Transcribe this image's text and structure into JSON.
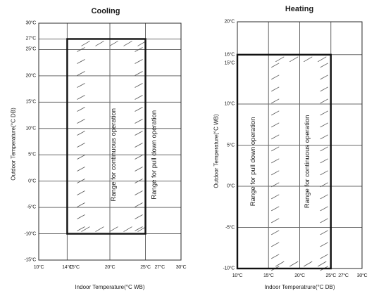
{
  "chart_data": [
    {
      "type": "area",
      "title": "Cooling",
      "xlabel": "Indoor Temperature(°C WB)",
      "ylabel": "Outdoor Temperature(°C DB)",
      "xlim": [
        10,
        30
      ],
      "ylim": [
        -15,
        30
      ],
      "x_ticks": [
        {
          "value": 10,
          "label": "10°C"
        },
        {
          "value": 14,
          "label": "14°C"
        },
        {
          "value": 15,
          "label": "15°C"
        },
        {
          "value": 20,
          "label": "20°C"
        },
        {
          "value": 25,
          "label": "25°C"
        },
        {
          "value": 27,
          "label": "27°C"
        },
        {
          "value": 30,
          "label": "30°C"
        }
      ],
      "y_ticks": [
        {
          "value": 30,
          "label": "30°C"
        },
        {
          "value": 27,
          "label": "27°C"
        },
        {
          "value": 25,
          "label": "25°C"
        },
        {
          "value": 20,
          "label": "20°C"
        },
        {
          "value": 15,
          "label": "15°C"
        },
        {
          "value": 10,
          "label": "10°C"
        },
        {
          "value": 5,
          "label": "5°C"
        },
        {
          "value": 0,
          "label": "0°C"
        },
        {
          "value": -5,
          "label": "-5°C"
        },
        {
          "value": -10,
          "label": "-10°C"
        },
        {
          "value": -15,
          "label": "-15°C"
        }
      ],
      "x_grid": [
        10,
        14,
        20,
        25,
        30
      ],
      "y_grid": [
        30,
        27,
        25,
        20,
        15,
        10,
        5,
        0,
        -5,
        -10,
        -15
      ],
      "operating_region": {
        "x": [
          14,
          25
        ],
        "y": [
          -10,
          27
        ]
      },
      "hatched_region": {
        "x": [
          15,
          25
        ],
        "y": [
          -10,
          27
        ]
      },
      "region_labels": [
        {
          "text": "Range for continuous operation",
          "x": 20.5,
          "y": 5
        },
        {
          "text": "Range for pull down operation",
          "x": 26.2,
          "y": 5
        }
      ]
    },
    {
      "type": "area",
      "title": "Heating",
      "xlabel": "Indoor Temperatrure(°C DB)",
      "ylabel": "Outdoor Temperature(°C WB)",
      "xlim": [
        10,
        30
      ],
      "ylim": [
        -10,
        20
      ],
      "x_ticks": [
        {
          "value": 10,
          "label": "10°C"
        },
        {
          "value": 15,
          "label": "15°C"
        },
        {
          "value": 20,
          "label": "20°C"
        },
        {
          "value": 25,
          "label": "25°C"
        },
        {
          "value": 27,
          "label": "27°C"
        },
        {
          "value": 30,
          "label": "30°C"
        }
      ],
      "y_ticks": [
        {
          "value": 20,
          "label": "20°C"
        },
        {
          "value": 16,
          "label": "16°C"
        },
        {
          "value": 15,
          "label": "15°C"
        },
        {
          "value": 10,
          "label": "10°C"
        },
        {
          "value": 5,
          "label": "5°C"
        },
        {
          "value": 0,
          "label": "0°C"
        },
        {
          "value": -5,
          "label": "-5°C"
        },
        {
          "value": -10,
          "label": "-10°C"
        }
      ],
      "x_grid": [
        10,
        15,
        20,
        25,
        30
      ],
      "y_grid": [
        20,
        16,
        10,
        5,
        0,
        -5,
        -10
      ],
      "operating_region": {
        "x": [
          10,
          25
        ],
        "y": [
          -10,
          16
        ]
      },
      "hatched_region": {
        "x": [
          15,
          25
        ],
        "y": [
          -10,
          16
        ]
      },
      "region_labels": [
        {
          "text": "Range for pull down operation",
          "x": 12.5,
          "y": 3
        },
        {
          "text": "Range for continuous operation",
          "x": 21.2,
          "y": 3
        }
      ]
    }
  ]
}
